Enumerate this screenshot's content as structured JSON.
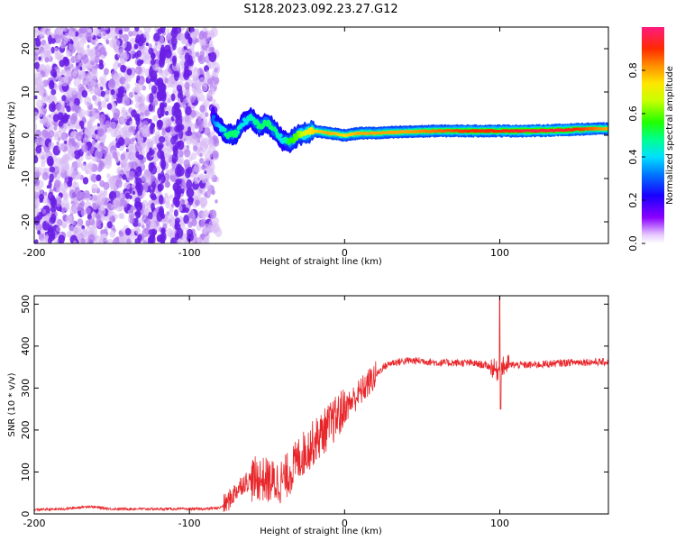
{
  "title": "S128.2023.092.23.27.G12",
  "chart_data": [
    {
      "type": "heatmap",
      "xlabel": "Height of straight line (km)",
      "ylabel": "Frequency (Hz)",
      "xlim": [
        -200,
        170
      ],
      "ylim": [
        -25,
        25
      ],
      "xticks": [
        -200,
        -100,
        0,
        100
      ],
      "yticks": [
        -20,
        -10,
        0,
        10,
        20
      ],
      "noise_region": [
        -200,
        -83
      ],
      "ridge": {
        "x": [
          -85,
          -80,
          -75,
          -70,
          -65,
          -60,
          -55,
          -50,
          -45,
          -40,
          -35,
          -30,
          -25,
          -20,
          -10,
          0,
          10,
          20,
          40,
          60,
          80,
          90,
          100,
          120,
          140,
          160,
          170
        ],
        "y": [
          4,
          1.5,
          0,
          0.5,
          3,
          4,
          2,
          3,
          1,
          -1,
          -1.5,
          0,
          0.5,
          1,
          0.5,
          0,
          0.5,
          0.5,
          0.8,
          1,
          1,
          1,
          1,
          1,
          1.2,
          1.5,
          1.5
        ],
        "amplitude": [
          0.3,
          0.4,
          0.5,
          0.5,
          0.4,
          0.45,
          0.5,
          0.5,
          0.5,
          0.4,
          0.55,
          0.6,
          0.7,
          0.75,
          0.8,
          0.75,
          0.8,
          0.8,
          0.8,
          0.85,
          0.9,
          0.9,
          0.9,
          0.95,
          0.95,
          0.85,
          0.8
        ]
      },
      "colorbar": {
        "label": "Normalized spectral amplitude",
        "range": [
          0,
          1
        ],
        "ticks": [
          0.0,
          0.2,
          0.4,
          0.6,
          0.8
        ]
      }
    },
    {
      "type": "line",
      "xlabel": "Height of straight line (km)",
      "ylabel": "SNR (10 * v/v)",
      "xlim": [
        -200,
        170
      ],
      "ylim": [
        0,
        520
      ],
      "xticks": [
        -200,
        -100,
        0,
        100
      ],
      "yticks": [
        0,
        100,
        200,
        300,
        400,
        500
      ],
      "line_color": "#e8262a",
      "trend": {
        "x": [
          -200,
          -180,
          -165,
          -150,
          -120,
          -90,
          -80,
          -75,
          -70,
          -65,
          -60,
          -55,
          -50,
          -45,
          -40,
          -35,
          -30,
          -25,
          -20,
          -15,
          -10,
          -5,
          0,
          5,
          10,
          15,
          20,
          25,
          30,
          40,
          50,
          60,
          70,
          80,
          90,
          95,
          98,
          100,
          102,
          105,
          110,
          120,
          130,
          140,
          150,
          160,
          170
        ],
        "y": [
          10,
          12,
          18,
          12,
          12,
          12,
          15,
          30,
          55,
          75,
          80,
          85,
          80,
          75,
          80,
          100,
          130,
          150,
          170,
          190,
          210,
          230,
          250,
          270,
          290,
          310,
          330,
          350,
          360,
          365,
          365,
          360,
          360,
          360,
          355,
          350,
          340,
          345,
          350,
          355,
          355,
          355,
          357,
          360,
          362,
          362,
          362
        ]
      },
      "spike": {
        "x": 100,
        "y": 520,
        "min": 250
      }
    }
  ],
  "colors": {
    "noise_light": "#d9bdf5",
    "noise_mid": "#b37ef0",
    "noise_dark": "#6a1ee6",
    "axis": "#000000"
  }
}
